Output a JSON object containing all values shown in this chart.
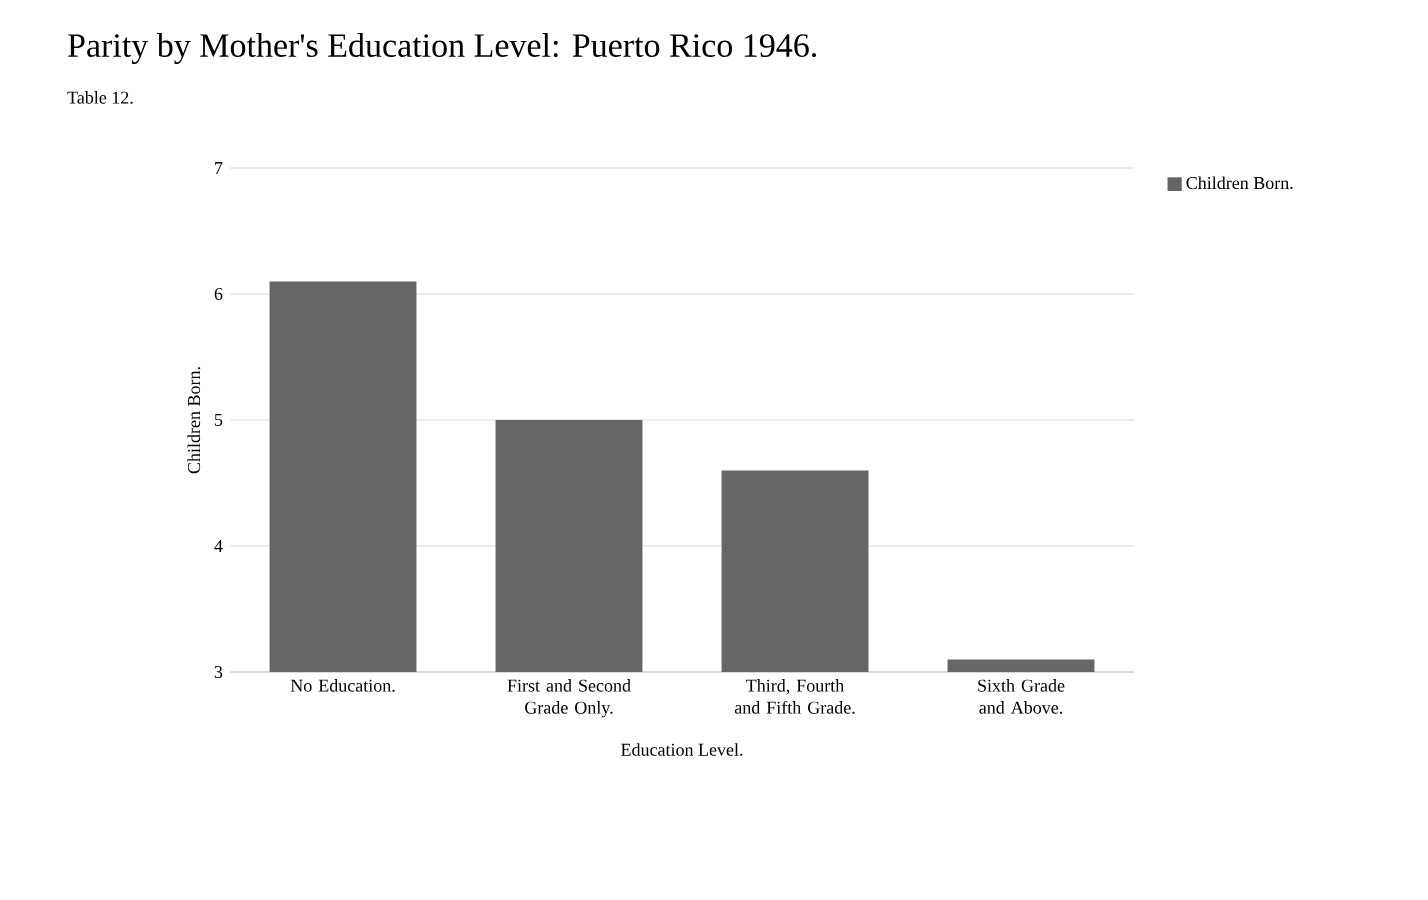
{
  "chart_data": {
    "type": "bar",
    "title": "Parity by Mother's Education Level: Puerto Rico 1946.",
    "subtitle": "Table 12.",
    "xlabel": "Education Level.",
    "ylabel": "Children Born.",
    "categories": [
      "No Education.",
      "First and Second Grade Only.",
      "Third, Fourth and Fifth Grade.",
      "Sixth Grade and Above."
    ],
    "series": [
      {
        "name": "Children Born.",
        "color": "#666666",
        "values": [
          6.1,
          5.0,
          4.6,
          3.1
        ]
      }
    ],
    "ylim": [
      3,
      7
    ],
    "yticks": [
      3,
      4,
      5,
      6,
      7
    ],
    "grid": "y",
    "legend": "top right"
  }
}
